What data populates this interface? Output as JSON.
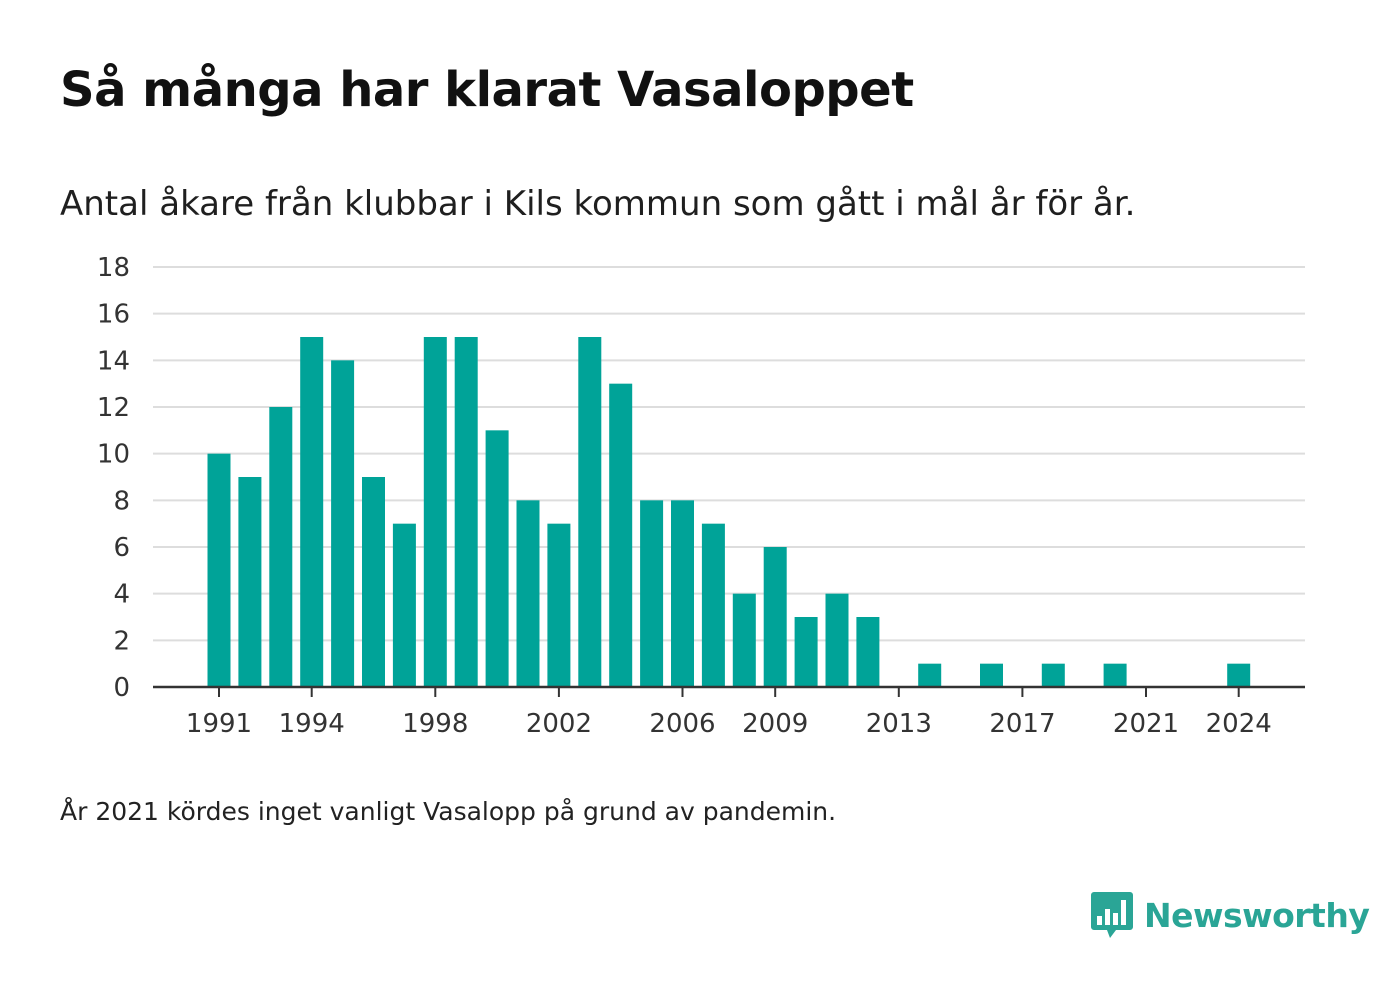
{
  "header": {
    "title": "Så många har klarat Vasaloppet",
    "subtitle": "Antal åkare från klubbar i Kils kommun som gått i mål år för år."
  },
  "footnote": "År 2021 kördes inget vanligt Vasalopp på grund av pandemin.",
  "brand": {
    "name": "Newsworthy",
    "icon": "newsworthy-chart-bubble-icon",
    "color": "#2aa596"
  },
  "colors": {
    "bar": "#00a398",
    "grid": "#dddddd",
    "axis": "#333333"
  },
  "chart_data": {
    "type": "bar",
    "title": "Så många har klarat Vasaloppet",
    "subtitle": "Antal åkare från klubbar i Kils kommun som gått i mål år för år.",
    "xlabel": "",
    "ylabel": "",
    "ylim": [
      0,
      18
    ],
    "y_ticks": [
      0,
      2,
      4,
      6,
      8,
      10,
      12,
      14,
      16,
      18
    ],
    "x_tick_labels": [
      "1991",
      "1994",
      "1998",
      "2002",
      "2006",
      "2009",
      "2013",
      "2017",
      "2021",
      "2024"
    ],
    "grid": true,
    "legend": "none",
    "categories": [
      1991,
      1992,
      1993,
      1994,
      1995,
      1996,
      1997,
      1998,
      1999,
      2000,
      2001,
      2002,
      2003,
      2004,
      2005,
      2006,
      2007,
      2008,
      2009,
      2010,
      2011,
      2012,
      2013,
      2014,
      2015,
      2016,
      2017,
      2018,
      2019,
      2020,
      2021,
      2022,
      2023,
      2024
    ],
    "values": [
      10,
      9,
      12,
      15,
      14,
      9,
      7,
      15,
      15,
      11,
      8,
      7,
      15,
      13,
      8,
      8,
      7,
      4,
      6,
      3,
      4,
      3,
      0,
      1,
      0,
      1,
      0,
      1,
      0,
      1,
      0,
      0,
      0,
      1
    ]
  }
}
